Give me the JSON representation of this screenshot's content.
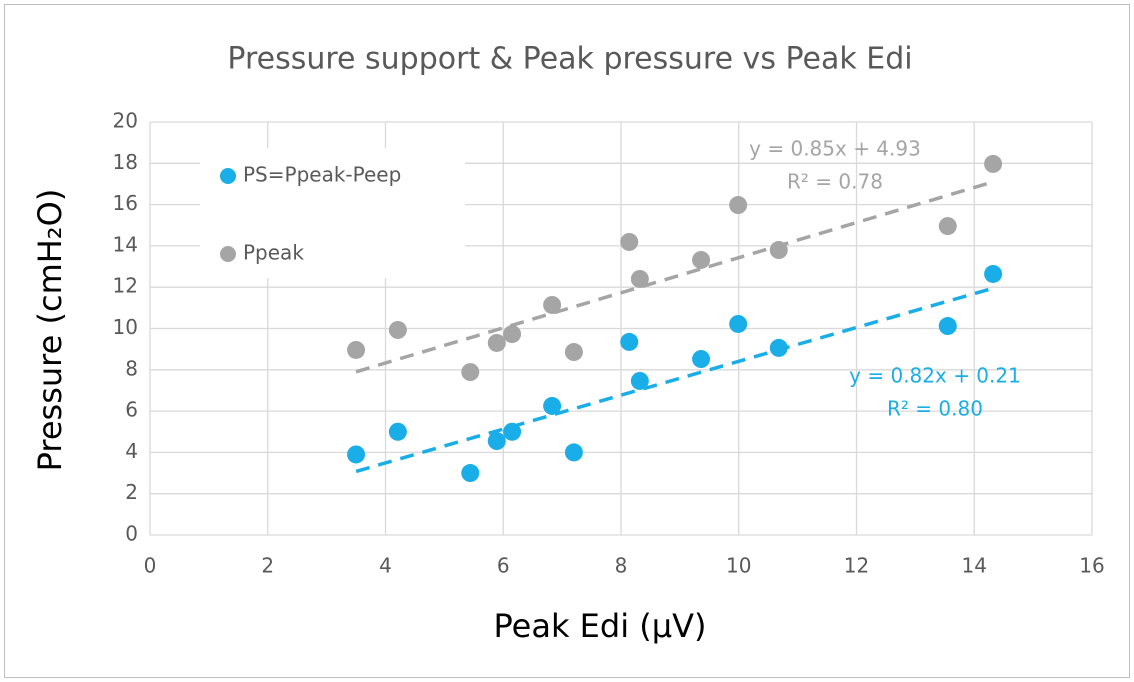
{
  "chart_data": {
    "type": "scatter",
    "title": "Pressure support & Peak pressure vs Peak Edi",
    "x_label": "Peak Edi (μV)",
    "y_label": "Pressure (cmH₂O)",
    "xlim": [
      0,
      16
    ],
    "xticks": [
      0,
      2,
      4,
      6,
      8,
      10,
      12,
      14,
      16
    ],
    "ylim": [
      0,
      20
    ],
    "yticks": [
      0,
      2,
      4,
      6,
      8,
      10,
      12,
      14,
      16,
      18,
      20
    ],
    "grid": true,
    "legend": "upper left",
    "series": [
      {
        "name": "PS=Ppeak-Peep",
        "color": "#1aaee8",
        "x": [
          3.5,
          4.21,
          5.44,
          5.89,
          6.15,
          6.83,
          7.2,
          8.14,
          8.32,
          9.36,
          9.99,
          10.68,
          13.55,
          14.32
        ],
        "values": [
          3.9,
          5.0,
          3.0,
          4.55,
          5.0,
          6.25,
          4.0,
          9.35,
          7.46,
          8.52,
          10.22,
          9.06,
          10.12,
          12.64
        ],
        "trendline": {
          "slope": 0.82,
          "intercept": 0.21,
          "label": "y = 0.82x + 0.21",
          "r2_label": "R² = 0.80"
        }
      },
      {
        "name": "Ppeak",
        "color": "#a5a5a5",
        "x": [
          3.5,
          4.21,
          5.44,
          5.89,
          6.15,
          6.83,
          7.2,
          8.14,
          8.32,
          9.36,
          9.99,
          10.68,
          13.55,
          14.32
        ],
        "values": [
          8.96,
          9.93,
          7.89,
          9.3,
          9.73,
          11.14,
          8.86,
          14.19,
          12.4,
          13.32,
          15.98,
          13.8,
          14.96,
          17.97
        ],
        "trendline": {
          "slope": 0.85,
          "intercept": 4.93,
          "label": "y = 0.85x + 4.93",
          "r2_label": "R² = 0.78"
        }
      }
    ]
  }
}
